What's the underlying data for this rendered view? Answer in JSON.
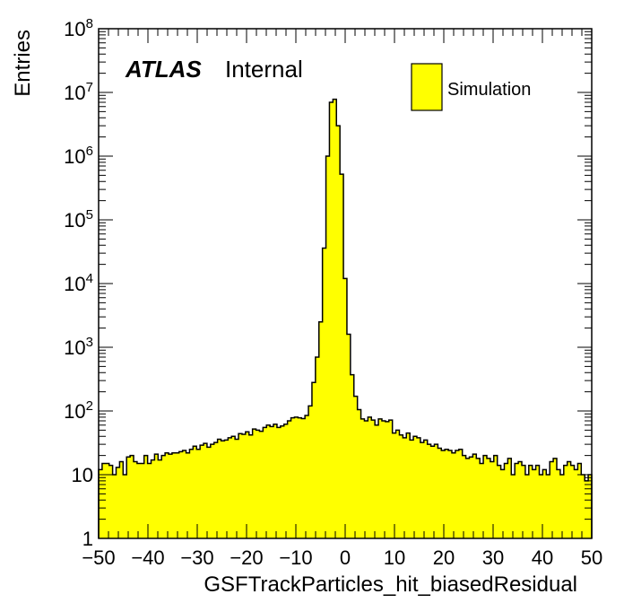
{
  "label": {
    "atlas": "ATLAS",
    "internal": "Internal"
  },
  "legend": {
    "entry": "Simulation"
  },
  "colors": {
    "fill": "#ffff00",
    "line": "#000000"
  },
  "chart_data": {
    "type": "bar",
    "xlabel": "GSFTrackParticles_hit_biasedResidual",
    "ylabel": "Entries",
    "xlim": [
      -50,
      50
    ],
    "ylim": [
      1,
      100000000
    ],
    "yscale": "log",
    "bin_width": 1,
    "x_ticks": [
      "-50",
      "-40",
      "-30",
      "-20",
      "-10",
      "0",
      "10",
      "20",
      "30",
      "40",
      "50"
    ],
    "y_ticks": [
      {
        "base": "1",
        "exp": ""
      },
      {
        "base": "10",
        "exp": ""
      },
      {
        "base": "10",
        "exp": "2"
      },
      {
        "base": "10",
        "exp": "3"
      },
      {
        "base": "10",
        "exp": "4"
      },
      {
        "base": "10",
        "exp": "5"
      },
      {
        "base": "10",
        "exp": "6"
      },
      {
        "base": "10",
        "exp": "7"
      },
      {
        "base": "10",
        "exp": "8"
      }
    ],
    "legend_position": "top-right",
    "series": [
      {
        "name": "Simulation",
        "values": [
          12,
          15,
          15,
          14,
          10,
          13,
          16,
          10,
          19,
          20,
          16,
          15,
          15,
          20,
          15,
          17,
          21,
          17,
          20,
          22,
          21,
          22,
          22,
          23,
          24,
          22,
          25,
          28,
          25,
          29,
          31,
          27,
          30,
          32,
          36,
          34,
          35,
          38,
          40,
          36,
          44,
          43,
          47,
          42,
          52,
          50,
          48,
          55,
          60,
          57,
          62,
          55,
          58,
          62,
          70,
          78,
          80,
          78,
          76,
          85,
          120,
          280,
          700,
          2500,
          36000,
          1000000,
          7000000,
          7800000,
          3000000,
          520000,
          12000,
          1600,
          370,
          170,
          105,
          75,
          70,
          80,
          72,
          60,
          75,
          70,
          68,
          72,
          45,
          50,
          42,
          38,
          45,
          35,
          40,
          38,
          32,
          35,
          30,
          28,
          30,
          26,
          24,
          25,
          24,
          22,
          24,
          25,
          20,
          18,
          19,
          21,
          18,
          15,
          20,
          18,
          16,
          20,
          14,
          12,
          15,
          18,
          10,
          15,
          16,
          14,
          10,
          14,
          12,
          14,
          10,
          12,
          10,
          16,
          18,
          12,
          10,
          14,
          16,
          14,
          12,
          15,
          10,
          8,
          10
        ]
      }
    ]
  }
}
